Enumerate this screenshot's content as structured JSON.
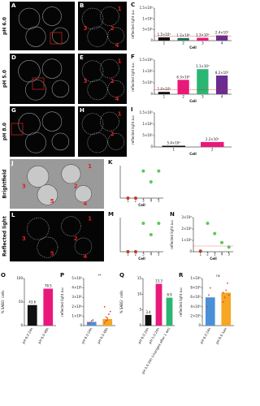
{
  "row_labels": [
    "pH 6.0",
    "pH 5.0",
    "pH 8.0",
    "Brightfield",
    "Reflected light"
  ],
  "images": [
    {
      "letter": "A"
    },
    {
      "letter": "B",
      "labels": [
        "1",
        "2",
        "3",
        "4"
      ]
    },
    {
      "letter": "D"
    },
    {
      "letter": "E",
      "labels": [
        "1",
        "2",
        "3",
        "4"
      ]
    },
    {
      "letter": "G"
    },
    {
      "letter": "H",
      "labels": [
        "1",
        "2"
      ]
    },
    {
      "letter": "J",
      "labels": [
        "1",
        "2",
        "3",
        "4",
        "5"
      ]
    },
    {
      "letter": "L",
      "labels": [
        "1",
        "2",
        "3",
        "4",
        "5"
      ]
    }
  ],
  "chart_data": [
    {
      "letter": "C",
      "type": "bar",
      "y_label": "reflected light a.u",
      "x_label": "Cell",
      "categories": [
        "1",
        "2",
        "3",
        "4"
      ],
      "values": [
        150000,
        120000,
        130000,
        240000
      ],
      "value_labels": [
        "1.5×10⁵",
        "1.2×10⁵",
        "1.3×10⁵",
        "2.4×10⁵"
      ],
      "colors": [
        "#111111",
        "#1f6f5c",
        "#e8197a",
        "#6a2c91"
      ],
      "ylim": [
        0,
        1500000
      ],
      "yticks": [
        0,
        {
          "value": 500000,
          "label": "5×10⁵"
        },
        {
          "value": 1000000,
          "label": "1×10⁶"
        },
        {
          "value": 1500000,
          "label": "1.5×10⁶"
        }
      ],
      "reference_line": 200000
    },
    {
      "letter": "F",
      "type": "bar",
      "y_label": "reflected light a.u",
      "x_label": "Cell",
      "categories": [
        "1",
        "2",
        "3",
        "4"
      ],
      "values": [
        100000,
        630000,
        1100000,
        820000
      ],
      "value_labels": [
        "1.0×10⁵",
        "6.3×10⁵",
        "1.1×10⁶",
        "8.2×10⁵"
      ],
      "colors": [
        "#111111",
        "#e8197a",
        "#2bb673",
        "#6a2c91"
      ],
      "ylim": [
        0,
        1500000
      ],
      "yticks": [
        0,
        {
          "value": 500000,
          "label": "5×10⁵"
        },
        {
          "value": 1000000,
          "label": "1×10⁶"
        },
        {
          "value": 1500000,
          "label": "1.5×10⁶"
        }
      ],
      "reference_line": 200000
    },
    {
      "letter": "I",
      "type": "bar",
      "y_label": "reflected light a.u",
      "x_label": "Cell",
      "categories": [
        "1",
        "2"
      ],
      "values": [
        54000,
        220000
      ],
      "value_labels": [
        "5.4×10⁴",
        "2.2×10⁵"
      ],
      "colors": [
        "#111111",
        "#e8197a"
      ],
      "ylim": [
        0,
        1500000
      ],
      "yticks": [
        0,
        {
          "value": 500000,
          "label": "5×10⁵"
        },
        {
          "value": 1000000,
          "label": "1×10⁶"
        },
        {
          "value": 1500000,
          "label": "1.5×10⁶"
        }
      ]
    },
    {
      "letter": "K",
      "type": "scatter",
      "x_label": "Cell",
      "x": [
        1,
        2,
        3,
        4,
        5
      ],
      "values": [
        0,
        0,
        1,
        0.6,
        1
      ],
      "point_colors": [
        "#c0392b",
        "#c0392b",
        "#5cc85c",
        "#5cc85c",
        "#5cc85c"
      ],
      "xlim": [
        0,
        5.6
      ],
      "xticks": [
        1,
        2,
        3,
        4,
        5
      ],
      "ylim": [
        0,
        1.2
      ]
    },
    {
      "letter": "M",
      "type": "scatter",
      "x_label": "Cell",
      "x": [
        1,
        2,
        3,
        4,
        5
      ],
      "values": [
        0,
        0,
        1,
        0.6,
        1
      ],
      "point_colors": [
        "#c0392b",
        "#c0392b",
        "#5cc85c",
        "#5cc85c",
        "#5cc85c"
      ],
      "xlim": [
        0,
        5.6
      ],
      "xticks": [
        1,
        2,
        3,
        4,
        5
      ],
      "ylim": [
        0,
        1.2
      ]
    },
    {
      "letter": "N",
      "type": "scatter",
      "y_label": "reflected light a.u",
      "x_label": "Cell",
      "x": [
        1,
        2,
        3,
        4,
        5
      ],
      "values": [
        50000,
        2500000,
        1600000,
        800000,
        400000
      ],
      "point_colors": [
        "#c0392b",
        "#5cc85c",
        "#5cc85c",
        "#5cc85c",
        "#5cc85c"
      ],
      "xlim": [
        0,
        5.6
      ],
      "xticks": [
        1,
        2,
        3,
        4,
        5
      ],
      "ylim": [
        0,
        3000000
      ],
      "yticks": [
        0,
        {
          "value": 1000000,
          "label": "1×10⁶"
        },
        {
          "value": 2000000,
          "label": "2×10⁶"
        },
        {
          "value": 3000000,
          "label": "3×10⁶"
        }
      ],
      "reference_line": 500000
    },
    {
      "letter": "O",
      "type": "bar",
      "y_label": "% SABG⁺ cells",
      "categories": [
        "pH 6.0 24h",
        "pH 6.0 48h"
      ],
      "values": [
        43.6,
        78.5
      ],
      "value_labels": [
        "43.6",
        "78.5"
      ],
      "colors": [
        "#111111",
        "#e8197a"
      ],
      "ylim": [
        0,
        100
      ],
      "yticks": [
        0,
        50,
        100
      ]
    },
    {
      "letter": "P",
      "type": "bar",
      "y_label": "reflected light a.u",
      "annotation": "**",
      "categories": [
        "pH 6.0 24h",
        "pH 6.0 48h"
      ],
      "values": [
        400000,
        700000
      ],
      "colors": [
        "#4a90d9",
        "#f5a623"
      ],
      "points": [
        [
          200000,
          300000,
          500000,
          600000
        ],
        [
          300000,
          500000,
          800000,
          1200000,
          1500000,
          2000000,
          900000,
          600000
        ]
      ],
      "point_color": "#e0452b",
      "ylim": [
        0,
        5000000
      ],
      "yticks": [
        0,
        {
          "value": 1000000,
          "label": "1×10⁶"
        },
        {
          "value": 2000000,
          "label": "2×10⁶"
        },
        {
          "value": 3000000,
          "label": "3×10⁶"
        },
        {
          "value": 4000000,
          "label": "4×10⁶"
        },
        {
          "value": 5000000,
          "label": "5×10⁶"
        }
      ]
    },
    {
      "letter": "Q",
      "type": "bar",
      "y_label": "% SABG⁺ cells",
      "categories": [
        "pH 6.0 24h",
        "pH 5.0 24h",
        "pH 5.0 24h (changed after 1 wk)"
      ],
      "values": [
        3.4,
        13.3,
        8.9
      ],
      "value_labels": [
        "3.4",
        "13.3",
        "8.9"
      ],
      "colors": [
        "#111111",
        "#e8197a",
        "#2bb673"
      ],
      "ylim": [
        0,
        15
      ],
      "yticks": [
        0,
        5,
        10,
        15
      ]
    },
    {
      "letter": "R",
      "type": "bar",
      "y_label": "reflected light a.u",
      "annotation": "ns",
      "categories": [
        "pH 6.0 24h",
        "pH 6.0 1wk"
      ],
      "values": [
        600000,
        700000
      ],
      "colors": [
        "#4a90d9",
        "#f5a623"
      ],
      "points": [
        [
          400000,
          650000,
          800000
        ],
        [
          500000,
          600000,
          750000,
          900000,
          650000,
          700000
        ]
      ],
      "point_color": "#e0452b",
      "ylim": [
        0,
        1000000
      ],
      "yticks": [
        0,
        {
          "value": 200000,
          "label": "2×10⁵"
        },
        {
          "value": 400000,
          "label": "4×10⁵"
        },
        {
          "value": 600000,
          "label": "6×10⁵"
        },
        {
          "value": 800000,
          "label": "8×10⁵"
        },
        {
          "value": 1000000,
          "label": "1×10⁶"
        }
      ]
    }
  ]
}
